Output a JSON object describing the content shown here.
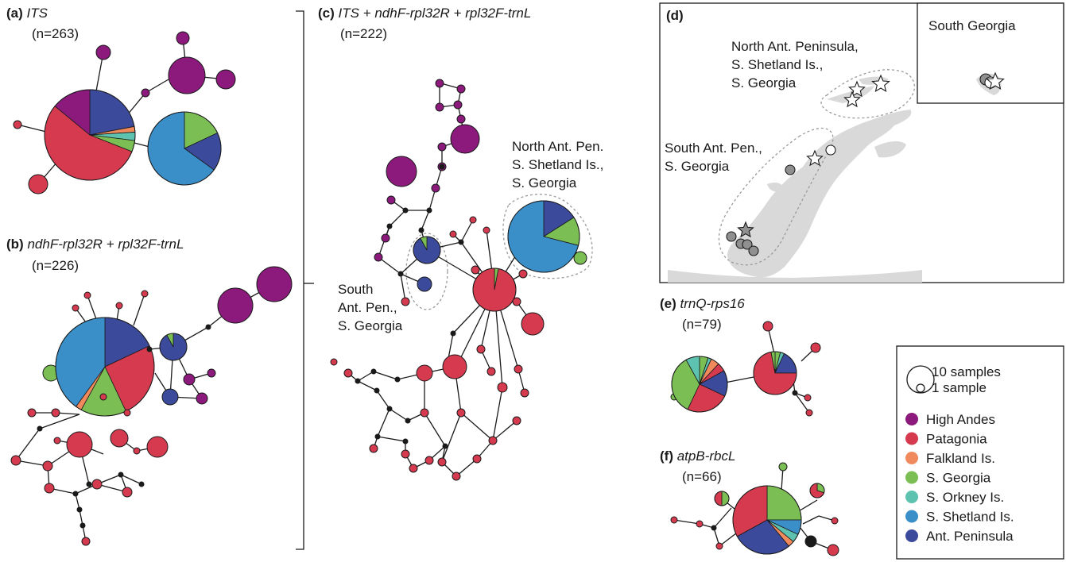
{
  "colors": {
    "high_andes": "#8b1a7c",
    "patagonia": "#d63a4e",
    "falkland": "#f08a5d",
    "s_georgia": "#7bbf54",
    "s_orkney": "#5ec2b0",
    "s_shetland": "#3a8fc8",
    "ant_peninsula": "#3c4a9c",
    "map_land": "#d9d9d9",
    "dashed": "#9a9a9a"
  },
  "panels": {
    "a": {
      "letter": "(a)",
      "marker": "ITS",
      "n": "(n=263)"
    },
    "b": {
      "letter": "(b)",
      "marker": "ndhF-rpl32R + rpl32F-trnL",
      "n": "(n=226)"
    },
    "c": {
      "letter": "(c)",
      "marker": "ITS + ndhF-rpl32R + rpl32F-trnL",
      "n": "(n=222)",
      "group_north": [
        "North Ant. Pen.",
        "S. Shetland Is.,",
        "S. Georgia"
      ],
      "group_south": [
        "South",
        "Ant. Pen.,",
        "S. Georgia"
      ]
    },
    "d": {
      "letter": "(d)",
      "inset_title": "South Georgia",
      "group_north": [
        "North Ant. Peninsula,",
        "S. Shetland Is.,",
        "S. Georgia"
      ],
      "group_south": [
        "South Ant. Pen.,",
        "S. Georgia"
      ]
    },
    "e": {
      "letter": "(e)",
      "marker": "trnQ-rps16",
      "n": "(n=79)"
    },
    "f": {
      "letter": "(f)",
      "marker": "atpB-rbcL",
      "n": "(n=66)"
    }
  },
  "legend": {
    "size_large": "10 samples",
    "size_small": "1 sample",
    "items": [
      {
        "label": "High Andes",
        "color": "#8b1a7c"
      },
      {
        "label": "Patagonia",
        "color": "#d63a4e"
      },
      {
        "label": "Falkland Is.",
        "color": "#f08a5d"
      },
      {
        "label": "S. Georgia",
        "color": "#7bbf54"
      },
      {
        "label": "S. Orkney Is.",
        "color": "#5ec2b0"
      },
      {
        "label": "S. Shetland Is.",
        "color": "#3a8fc8"
      },
      {
        "label": "Ant. Peninsula",
        "color": "#3c4a9c"
      }
    ]
  }
}
